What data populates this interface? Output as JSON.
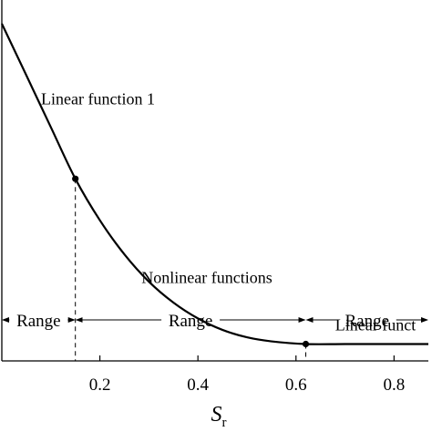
{
  "chart_data": {
    "type": "line",
    "xlabel": "S",
    "xlabel_subscript": "r",
    "ylabel": "",
    "xlim": [
      0,
      0.87
    ],
    "ylim": [
      0,
      1
    ],
    "x_ticks": [
      {
        "value": 0.2,
        "label": "0.2"
      },
      {
        "value": 0.4,
        "label": "0.4"
      },
      {
        "value": 0.6,
        "label": "0.6"
      },
      {
        "value": 0.8,
        "label": "0.8"
      }
    ],
    "grid": false,
    "series": [
      {
        "x": [
          0.0,
          0.05,
          0.1,
          0.15,
          0.2,
          0.25,
          0.3,
          0.35,
          0.4,
          0.45,
          0.5,
          0.55,
          0.62,
          0.7,
          0.8,
          0.87
        ],
        "y": [
          1.0,
          0.847,
          0.693,
          0.54,
          0.417,
          0.316,
          0.235,
          0.173,
          0.126,
          0.092,
          0.07,
          0.058,
          0.05,
          0.05,
          0.05,
          0.05
        ]
      }
    ],
    "breakpoints": [
      {
        "x": 0.15,
        "y": 0.54
      },
      {
        "x": 0.62,
        "y": 0.05
      }
    ],
    "annotations": [
      {
        "text": "Linear function 1",
        "x": 0.08,
        "y": 0.78
      },
      {
        "text": "Nonlinear functions",
        "x": 0.285,
        "y": 0.25
      },
      {
        "text": "Linear funct",
        "x": 0.68,
        "y": 0.11
      }
    ],
    "ranges": [
      {
        "label": "Range",
        "from": 0.0,
        "to": 0.15
      },
      {
        "label": "Range",
        "from": 0.15,
        "to": 0.62
      },
      {
        "label": "Range",
        "from": 0.62,
        "to": 0.87
      }
    ]
  }
}
